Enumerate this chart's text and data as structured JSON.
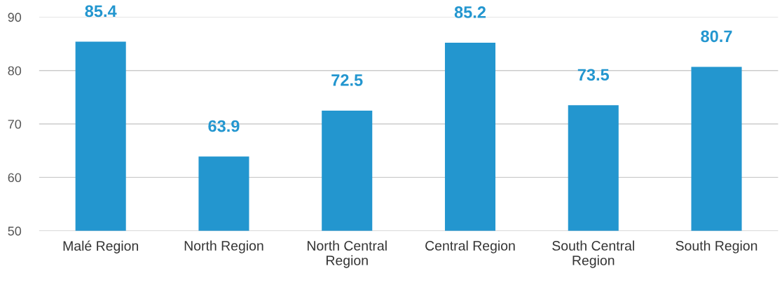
{
  "chart_data": {
    "type": "bar",
    "categories": [
      "Malé Region",
      "North Region",
      "North Central\nRegion",
      "Central Region",
      "South Central\nRegion",
      "South Region"
    ],
    "values": [
      85.4,
      63.9,
      72.5,
      85.2,
      73.5,
      80.7
    ],
    "color": "#2396cf",
    "ylim": [
      50,
      90
    ],
    "yticks": [
      50,
      60,
      70,
      80,
      90
    ],
    "grid": "y",
    "data_labels": true
  }
}
